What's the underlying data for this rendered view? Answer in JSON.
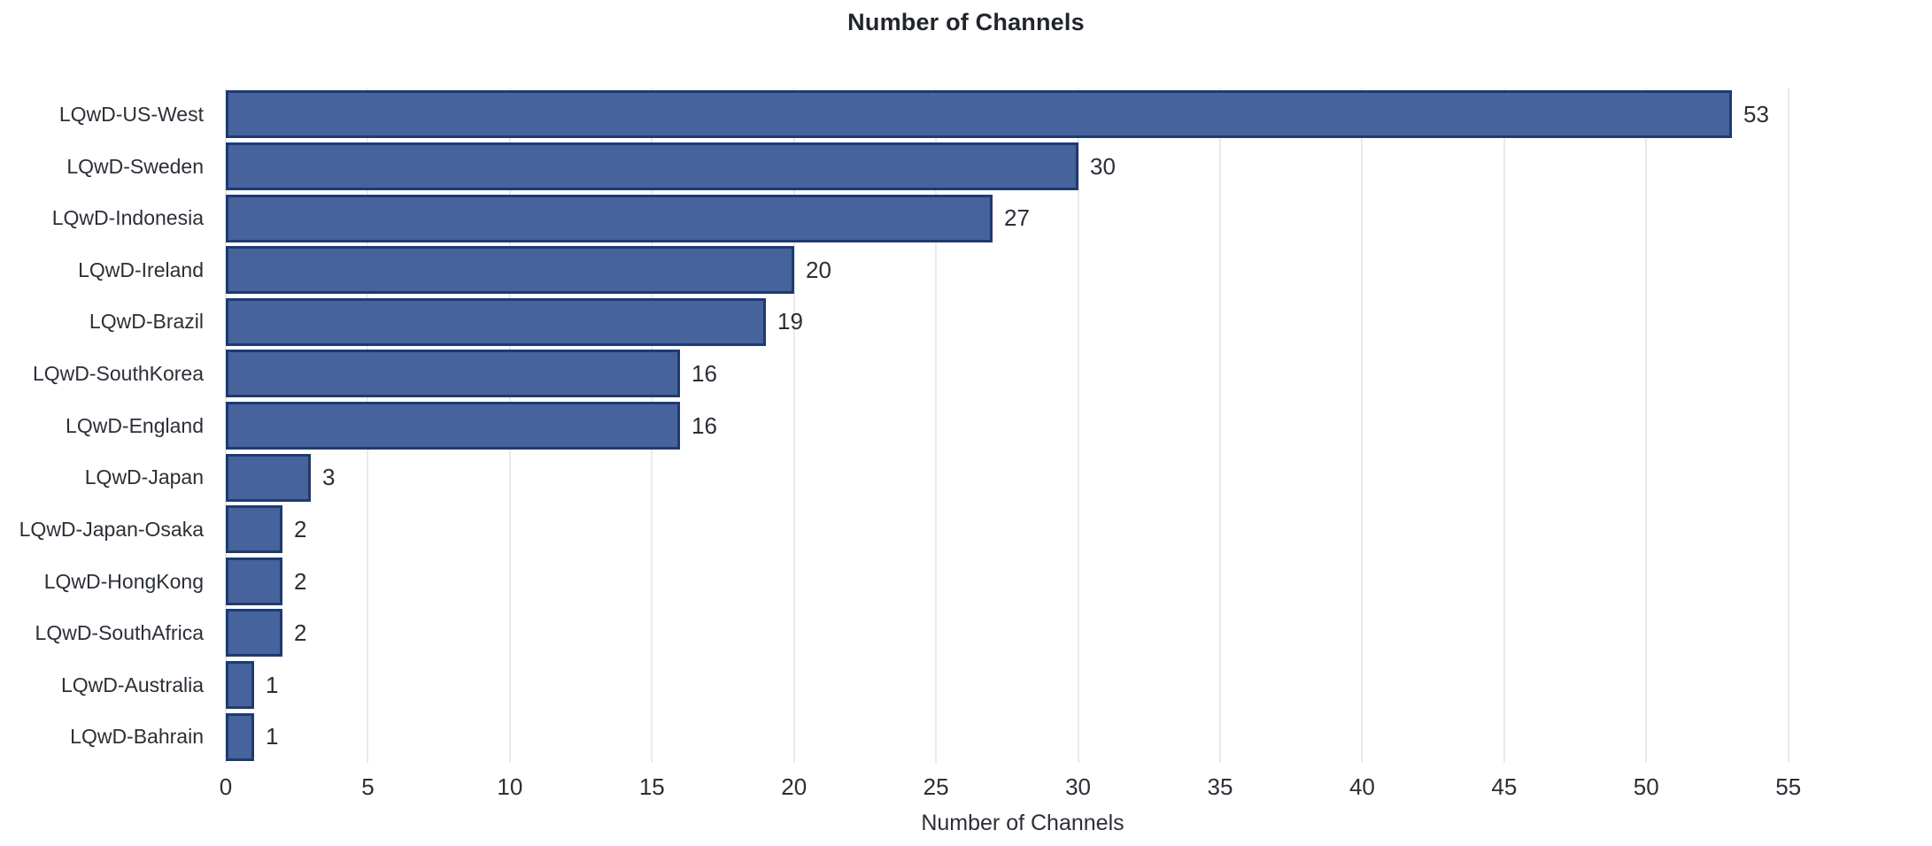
{
  "figure": {
    "title": "Number of Channels",
    "colors": {
      "bar_fill": "#46649b",
      "bar_border": "#1e3a72",
      "gridline": "#eaeaea",
      "title_text": "#21252b",
      "label_text": "#2b2f36"
    }
  },
  "chart_data": {
    "type": "bar",
    "orientation": "horizontal",
    "title": "Number of Channels",
    "xlabel": "Number of Channels",
    "ylabel": "",
    "categories": [
      "LQwD-US-West",
      "LQwD-Sweden",
      "LQwD-Indonesia",
      "LQwD-Ireland",
      "LQwD-Brazil",
      "LQwD-SouthKorea",
      "LQwD-England",
      "LQwD-Japan",
      "LQwD-Japan-Osaka",
      "LQwD-HongKong",
      "LQwD-SouthAfrica",
      "LQwD-Australia",
      "LQwD-Bahrain"
    ],
    "values": [
      53,
      30,
      27,
      20,
      19,
      16,
      16,
      3,
      2,
      2,
      2,
      1,
      1
    ],
    "bar_value_labels": [
      "53",
      "30",
      "27",
      "20",
      "19",
      "16",
      "16",
      "3",
      "2",
      "2",
      "2",
      "1",
      "1"
    ],
    "xlim": [
      0,
      56.1
    ],
    "xticks": [
      0,
      5,
      10,
      15,
      20,
      25,
      30,
      35,
      40,
      45,
      50,
      55
    ],
    "grid": true,
    "legend": false,
    "bar_labels_shown": true
  }
}
